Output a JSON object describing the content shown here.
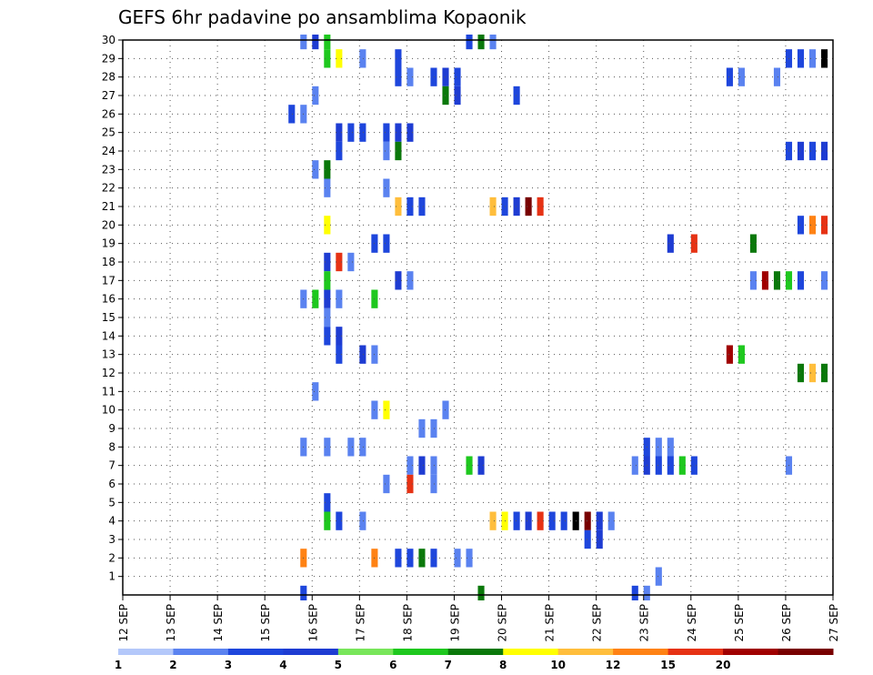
{
  "chart_data": {
    "type": "heatmap",
    "title": "GEFS 6hr padavine po ansamblima Kopaonik",
    "xlabel": "",
    "ylabel": "",
    "x_ticks": [
      "12 SEP",
      "13 SEP",
      "14 SEP",
      "15 SEP",
      "16 SEP",
      "17 SEP",
      "18 SEP",
      "19 SEP",
      "20 SEP",
      "21 SEP",
      "22 SEP",
      "23 SEP",
      "24 SEP",
      "25 SEP",
      "26 SEP",
      "27 SEP"
    ],
    "x_range": [
      0,
      60
    ],
    "x_unit": "6-hour steps from 12 SEP 00Z",
    "y_ticks": [
      1,
      2,
      3,
      4,
      5,
      6,
      7,
      8,
      9,
      10,
      11,
      12,
      13,
      14,
      15,
      16,
      17,
      18,
      19,
      20,
      21,
      22,
      23,
      24,
      25,
      26,
      27,
      28,
      29,
      30
    ],
    "y_range": [
      0,
      30
    ],
    "grid": true,
    "colorbar": {
      "labels": [
        "1",
        "2",
        "3",
        "4",
        "5",
        "6",
        "7",
        "8",
        "10",
        "12",
        "15",
        "20"
      ],
      "colors": [
        "#b4c8fa",
        "#5a82f0",
        "#1e46dc",
        "#1e3cd2",
        "#78e65a",
        "#1ec81e",
        "#0a780a",
        "#ffff00",
        "#ffbe3c",
        "#ff8214",
        "#e63214",
        "#a00000",
        "#780000"
      ]
    },
    "cells": [
      [
        30,
        15,
        1
      ],
      [
        30,
        16,
        3
      ],
      [
        30,
        17,
        5
      ],
      [
        30,
        29,
        2
      ],
      [
        30,
        30,
        6
      ],
      [
        30,
        31,
        1
      ],
      [
        29,
        17,
        5
      ],
      [
        29,
        18,
        7
      ],
      [
        29,
        20,
        1
      ],
      [
        29,
        23,
        2
      ],
      [
        29,
        56,
        2
      ],
      [
        29,
        57,
        2
      ],
      [
        29,
        58,
        1
      ],
      [
        29,
        59,
        13
      ],
      [
        28,
        23,
        2
      ],
      [
        28,
        24,
        1
      ],
      [
        28,
        26,
        2
      ],
      [
        28,
        27,
        3
      ],
      [
        28,
        28,
        2
      ],
      [
        28,
        51,
        2
      ],
      [
        28,
        52,
        1
      ],
      [
        28,
        55,
        1
      ],
      [
        27,
        16,
        1
      ],
      [
        27,
        27,
        6
      ],
      [
        27,
        28,
        3
      ],
      [
        27,
        33,
        2
      ],
      [
        26,
        14,
        2
      ],
      [
        26,
        15,
        1
      ],
      [
        25,
        18,
        3
      ],
      [
        25,
        19,
        2
      ],
      [
        25,
        20,
        2
      ],
      [
        25,
        22,
        2
      ],
      [
        25,
        23,
        3
      ],
      [
        25,
        24,
        3
      ],
      [
        24,
        18,
        2
      ],
      [
        24,
        22,
        1
      ],
      [
        24,
        23,
        6
      ],
      [
        24,
        56,
        2
      ],
      [
        24,
        57,
        3
      ],
      [
        24,
        58,
        2
      ],
      [
        24,
        59,
        3
      ],
      [
        23,
        16,
        1
      ],
      [
        23,
        17,
        6
      ],
      [
        22,
        17,
        1
      ],
      [
        22,
        22,
        1
      ],
      [
        21,
        23,
        8
      ],
      [
        21,
        24,
        2
      ],
      [
        21,
        25,
        2
      ],
      [
        21,
        31,
        8
      ],
      [
        21,
        32,
        2
      ],
      [
        21,
        33,
        3
      ],
      [
        21,
        34,
        12
      ],
      [
        21,
        35,
        10
      ],
      [
        20,
        17,
        7
      ],
      [
        20,
        57,
        2
      ],
      [
        20,
        58,
        9
      ],
      [
        20,
        59,
        10
      ],
      [
        19,
        21,
        2
      ],
      [
        19,
        22,
        2
      ],
      [
        19,
        46,
        3
      ],
      [
        19,
        48,
        10
      ],
      [
        19,
        53,
        6
      ],
      [
        18,
        17,
        3
      ],
      [
        18,
        18,
        10
      ],
      [
        18,
        19,
        1
      ],
      [
        17,
        17,
        5
      ],
      [
        17,
        23,
        3
      ],
      [
        17,
        24,
        1
      ],
      [
        17,
        53,
        1
      ],
      [
        17,
        54,
        11
      ],
      [
        17,
        55,
        6
      ],
      [
        17,
        56,
        5
      ],
      [
        17,
        57,
        2
      ],
      [
        17,
        59,
        1
      ],
      [
        16,
        15,
        1
      ],
      [
        16,
        16,
        5
      ],
      [
        16,
        17,
        3
      ],
      [
        16,
        18,
        1
      ],
      [
        16,
        21,
        5
      ],
      [
        15,
        17,
        1
      ],
      [
        14,
        17,
        2
      ],
      [
        14,
        18,
        3
      ],
      [
        13,
        18,
        2
      ],
      [
        13,
        20,
        3
      ],
      [
        13,
        21,
        1
      ],
      [
        13,
        51,
        11
      ],
      [
        13,
        52,
        5
      ],
      [
        12,
        57,
        6
      ],
      [
        12,
        58,
        8
      ],
      [
        12,
        59,
        6
      ],
      [
        11,
        16,
        1
      ],
      [
        10,
        21,
        1
      ],
      [
        10,
        22,
        7
      ],
      [
        10,
        27,
        1
      ],
      [
        9,
        25,
        1
      ],
      [
        9,
        26,
        1
      ],
      [
        8,
        15,
        1
      ],
      [
        8,
        17,
        1
      ],
      [
        8,
        19,
        1
      ],
      [
        8,
        20,
        1
      ],
      [
        8,
        44,
        2
      ],
      [
        8,
        45,
        1
      ],
      [
        8,
        46,
        1
      ],
      [
        7,
        24,
        1
      ],
      [
        7,
        25,
        3
      ],
      [
        7,
        26,
        1
      ],
      [
        7,
        29,
        5
      ],
      [
        7,
        30,
        3
      ],
      [
        7,
        43,
        1
      ],
      [
        7,
        44,
        3
      ],
      [
        7,
        45,
        2
      ],
      [
        7,
        46,
        2
      ],
      [
        7,
        47,
        5
      ],
      [
        7,
        48,
        2
      ],
      [
        7,
        56,
        1
      ],
      [
        6,
        22,
        1
      ],
      [
        6,
        24,
        10
      ],
      [
        6,
        26,
        1
      ],
      [
        5,
        17,
        2
      ],
      [
        4,
        17,
        5
      ],
      [
        4,
        18,
        2
      ],
      [
        4,
        20,
        1
      ],
      [
        4,
        31,
        8
      ],
      [
        4,
        32,
        7
      ],
      [
        4,
        33,
        2
      ],
      [
        4,
        34,
        3
      ],
      [
        4,
        35,
        10
      ],
      [
        4,
        36,
        2
      ],
      [
        4,
        37,
        2
      ],
      [
        4,
        38,
        13
      ],
      [
        4,
        39,
        12
      ],
      [
        4,
        40,
        3
      ],
      [
        4,
        41,
        1
      ],
      [
        3,
        39,
        2
      ],
      [
        3,
        40,
        3
      ],
      [
        2,
        15,
        9
      ],
      [
        2,
        21,
        9
      ],
      [
        2,
        23,
        2
      ],
      [
        2,
        24,
        2
      ],
      [
        2,
        25,
        6
      ],
      [
        2,
        26,
        2
      ],
      [
        2,
        28,
        1
      ],
      [
        2,
        29,
        1
      ],
      [
        1,
        45,
        1
      ],
      [
        0,
        15,
        2
      ],
      [
        0,
        30,
        6
      ],
      [
        0,
        43,
        2
      ],
      [
        0,
        44,
        1
      ]
    ]
  }
}
